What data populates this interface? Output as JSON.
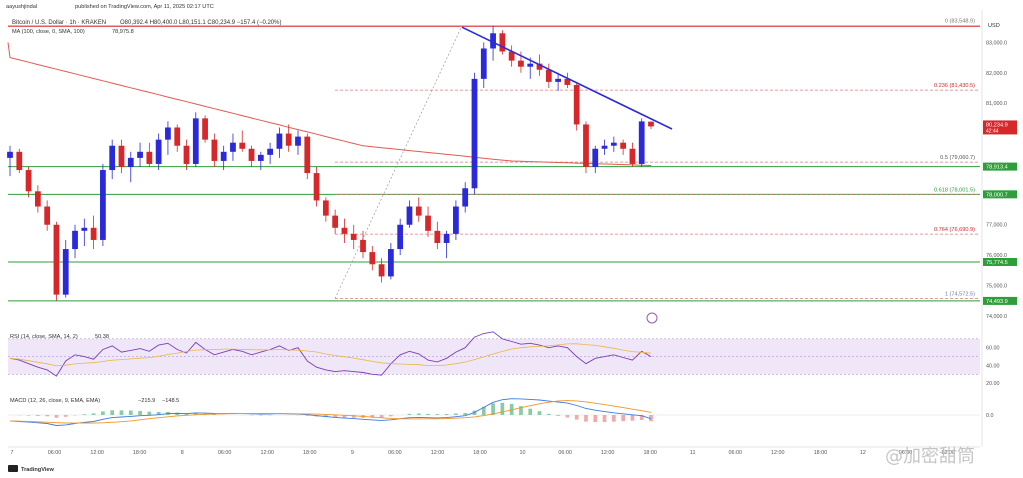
{
  "header": {
    "author": "aayushjindal",
    "published": "published on TradingView.com, Apr 11, 2025 02:17 UTC",
    "symbol": "Bitcoin / U.S. Dollar · 1h · KRAKEN",
    "ohlc": "O80,392.4 H80,400.0 L80,151.1 C80,234.9 −157.4 (−0.20%)",
    "ma_label": "MA (100, close, 0, SMA, 100)",
    "ma_value": "78,975.8",
    "currency": "USD"
  },
  "colors": {
    "up": "#2a2ad8",
    "down": "#d6282b",
    "ma": "#e05a54",
    "trendline": "#2b2bdc",
    "hline": "#2e9e3a",
    "fib_dash": "#d97b7b",
    "rsi": "#7b3fb8",
    "rsi_ma": "#e8b84a",
    "rsi_band": "#efe6f7",
    "macd": "#3d7be0",
    "signal": "#f0962c",
    "price_badge": "#d6282b",
    "ma_badge": "#2e9e3a",
    "green_badge": "#2e9e3a"
  },
  "price_axis": {
    "ticks": [
      "83,000.0",
      "82,000.0",
      "81,000.0",
      "77,000.0",
      "76,000.0",
      "75,000.0",
      "74,000.0"
    ],
    "current_price": "80,234.9",
    "countdown": "42:44",
    "ma_badge": "78,913.4",
    "level_badges": [
      "78,000.7",
      "75,774.5",
      "74,493.9"
    ]
  },
  "fib_levels": [
    {
      "label": "0 (83,548.9)"
    },
    {
      "label": "0.236 (81,430.5)"
    },
    {
      "label": "0.5 (79,060.7)"
    },
    {
      "label": "0.618 (78,001.5)"
    },
    {
      "label": "0.764 (76,690.9)"
    },
    {
      "label": "1 (74,572.5)"
    }
  ],
  "rsi": {
    "label": "RSI (14, close, SMA, 14, 2)",
    "value": "50.38",
    "ticks": [
      "60.00",
      "40.00",
      "20.00"
    ]
  },
  "macd": {
    "label": "MACD (12, 26, close, 9, EMA, EMA)",
    "values": [
      "−215.9",
      "−148.5"
    ],
    "ticks": [
      "0.0"
    ]
  },
  "time_axis": [
    "7",
    "06:00",
    "12:00",
    "18:00",
    "8",
    "06:00",
    "12:00",
    "18:00",
    "9",
    "06:00",
    "12:00",
    "18:00",
    "10",
    "06:00",
    "12:00",
    "18:00",
    "11",
    "06:00",
    "12:00",
    "18:00",
    "12",
    "06:00",
    "12:00"
  ],
  "brand": "TradingView",
  "watermark": "@加密甜筒",
  "chart_data": {
    "type": "candlestick",
    "timeframe": "1h",
    "ylim": [
      73800,
      84000
    ],
    "candles_approx": [
      [
        79200,
        79600,
        78600,
        79400
      ],
      [
        79400,
        79500,
        78700,
        78800
      ],
      [
        78800,
        78900,
        77900,
        78100
      ],
      [
        78100,
        78300,
        77400,
        77600
      ],
      [
        77600,
        77800,
        76800,
        77000
      ],
      [
        77000,
        77100,
        74500,
        74700
      ],
      [
        74700,
        76500,
        74600,
        76200
      ],
      [
        76200,
        77000,
        75900,
        76800
      ],
      [
        76800,
        77200,
        76300,
        76900
      ],
      [
        76900,
        77300,
        76200,
        76500
      ],
      [
        76500,
        79000,
        76300,
        78800
      ],
      [
        78800,
        79800,
        78500,
        79600
      ],
      [
        79600,
        79800,
        78700,
        78900
      ],
      [
        78900,
        79400,
        78400,
        79200
      ],
      [
        79200,
        79700,
        78900,
        79400
      ],
      [
        79400,
        79700,
        78900,
        79000
      ],
      [
        79000,
        80000,
        78800,
        79800
      ],
      [
        79800,
        80400,
        79300,
        80200
      ],
      [
        80200,
        80300,
        79400,
        79600
      ],
      [
        79600,
        79800,
        78800,
        79000
      ],
      [
        79000,
        80700,
        78900,
        80500
      ],
      [
        80500,
        80600,
        79700,
        79800
      ],
      [
        79800,
        80000,
        78900,
        79100
      ],
      [
        79100,
        79600,
        78800,
        79400
      ],
      [
        79400,
        80000,
        79100,
        79700
      ],
      [
        79700,
        80100,
        79400,
        79500
      ],
      [
        79500,
        79600,
        78900,
        79100
      ],
      [
        79100,
        79400,
        78800,
        79300
      ],
      [
        79300,
        79700,
        79000,
        79500
      ],
      [
        79500,
        80200,
        79200,
        80000
      ],
      [
        80000,
        80300,
        79400,
        79600
      ],
      [
        79600,
        80100,
        79300,
        79900
      ],
      [
        79900,
        80000,
        78500,
        78700
      ],
      [
        78700,
        78900,
        77600,
        77800
      ],
      [
        77800,
        77900,
        77100,
        77300
      ],
      [
        77300,
        77500,
        76700,
        76900
      ],
      [
        76900,
        77200,
        76400,
        76700
      ],
      [
        76700,
        77000,
        76200,
        76500
      ],
      [
        76500,
        76800,
        75900,
        76100
      ],
      [
        76100,
        76300,
        75500,
        75700
      ],
      [
        75700,
        75900,
        75100,
        75300
      ],
      [
        75300,
        76400,
        75200,
        76200
      ],
      [
        76200,
        77200,
        76000,
        77000
      ],
      [
        77000,
        77800,
        76900,
        77600
      ],
      [
        77600,
        77900,
        77100,
        77300
      ],
      [
        77300,
        77600,
        76600,
        76800
      ],
      [
        76800,
        77100,
        76200,
        76400
      ],
      [
        76400,
        76800,
        75900,
        76700
      ],
      [
        76700,
        77800,
        76500,
        77600
      ],
      [
        77600,
        78400,
        77400,
        78200
      ],
      [
        78200,
        82000,
        78000,
        81800
      ],
      [
        81800,
        83000,
        81500,
        82800
      ],
      [
        82800,
        83549,
        82400,
        83300
      ],
      [
        83300,
        83400,
        82600,
        82700
      ],
      [
        82700,
        82900,
        82200,
        82400
      ],
      [
        82400,
        82700,
        82000,
        82200
      ],
      [
        82200,
        82500,
        81800,
        82300
      ],
      [
        82300,
        82600,
        81900,
        82100
      ],
      [
        82100,
        82300,
        81500,
        81700
      ],
      [
        81700,
        82000,
        81400,
        81800
      ],
      [
        81800,
        82000,
        81500,
        81600
      ],
      [
        81600,
        81700,
        80100,
        80300
      ],
      [
        80300,
        80400,
        78700,
        78900
      ],
      [
        78900,
        79600,
        78700,
        79500
      ],
      [
        79500,
        79800,
        79300,
        79600
      ],
      [
        79600,
        79900,
        79400,
        79700
      ],
      [
        79700,
        79800,
        79300,
        79500
      ],
      [
        79500,
        79700,
        78900,
        79000
      ],
      [
        79000,
        80500,
        78900,
        80400
      ],
      [
        80392.4,
        80400,
        80151.1,
        80234.9
      ]
    ]
  }
}
